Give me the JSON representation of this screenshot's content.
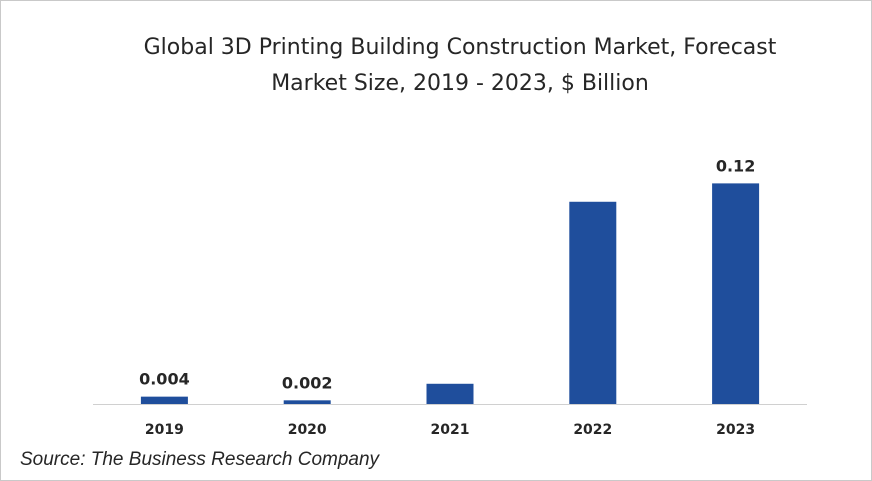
{
  "chart_data": {
    "type": "bar",
    "title": "Global 3D Printing Building Construction Market, Forecast",
    "subtitle": "Market Size, 2019 - 2023, $ Billion",
    "categories": [
      "2019",
      "2020",
      "2021",
      "2022",
      "2023"
    ],
    "values": [
      0.004,
      0.002,
      0.011,
      0.11,
      0.12
    ],
    "data_labels": [
      "0.004",
      "0.002",
      "",
      "",
      "0.12"
    ],
    "xlabel": "",
    "ylabel": "",
    "ylim": [
      0,
      0.13
    ],
    "grid": false,
    "legend": "none",
    "bar_color": "#1f4e9c",
    "source": "Source: The Business Research Company"
  }
}
